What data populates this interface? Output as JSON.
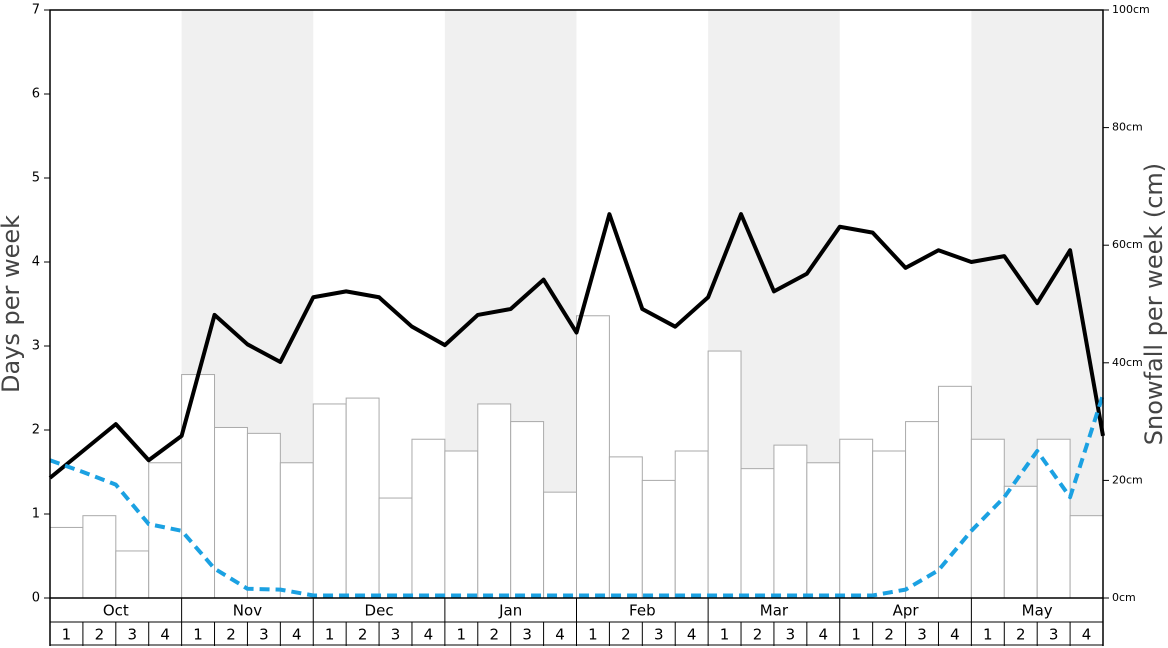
{
  "chart_data": {
    "type": "bar-line",
    "months": [
      "Oct",
      "Nov",
      "Dec",
      "Jan",
      "Feb",
      "Mar",
      "Apr",
      "May"
    ],
    "week_labels": [
      "1",
      "2",
      "3",
      "4"
    ],
    "shaded_months": [
      1,
      3,
      5,
      7
    ],
    "y_label": "Days per week",
    "y2_label": "Snowfall per week (cm)",
    "ylim": [
      0,
      7
    ],
    "yticks": [
      0,
      1,
      2,
      3,
      4,
      5,
      6,
      7
    ],
    "y2lim": [
      0,
      100
    ],
    "y2ticks": [
      {
        "value": 0,
        "label": "0cm"
      },
      {
        "value": 20,
        "label": "20cm"
      },
      {
        "value": 40,
        "label": "40cm"
      },
      {
        "value": 60,
        "label": "60cm"
      },
      {
        "value": 80,
        "label": "80cm"
      },
      {
        "value": 100,
        "label": "100cm"
      }
    ],
    "bars": {
      "axis": "y2",
      "color": "#ffffff",
      "stroke": "#aaaaaa",
      "values": [
        12,
        14,
        8,
        23,
        38,
        29,
        28,
        23,
        33,
        34,
        17,
        27,
        25,
        33,
        30,
        18,
        48,
        24,
        20,
        25,
        42,
        22,
        26,
        23,
        27,
        25,
        30,
        36,
        27,
        19,
        27,
        14
      ]
    },
    "series": [
      {
        "color": "#000000",
        "dashed": false,
        "values": [
          1.43,
          1.75,
          2.07,
          1.64,
          1.93,
          3.37,
          3.02,
          2.81,
          3.58,
          3.65,
          3.58,
          3.23,
          3.01,
          3.37,
          3.44,
          3.79,
          3.16,
          4.57,
          3.44,
          3.23,
          3.58,
          4.57,
          3.65,
          3.86,
          4.42,
          4.35,
          3.93,
          4.14,
          4.0,
          4.07,
          3.51,
          4.14,
          1.93
        ]
      },
      {
        "color": "#1ba1e2",
        "dashed": true,
        "values": [
          1.64,
          1.5,
          1.35,
          0.88,
          0.8,
          0.35,
          0.11,
          0.1,
          0.03,
          0.03,
          0.03,
          0.03,
          0.03,
          0.03,
          0.03,
          0.03,
          0.03,
          0.03,
          0.03,
          0.03,
          0.03,
          0.03,
          0.03,
          0.03,
          0.03,
          0.03,
          0.1,
          0.33,
          0.8,
          1.2,
          1.75,
          1.2,
          2.42
        ]
      }
    ]
  }
}
